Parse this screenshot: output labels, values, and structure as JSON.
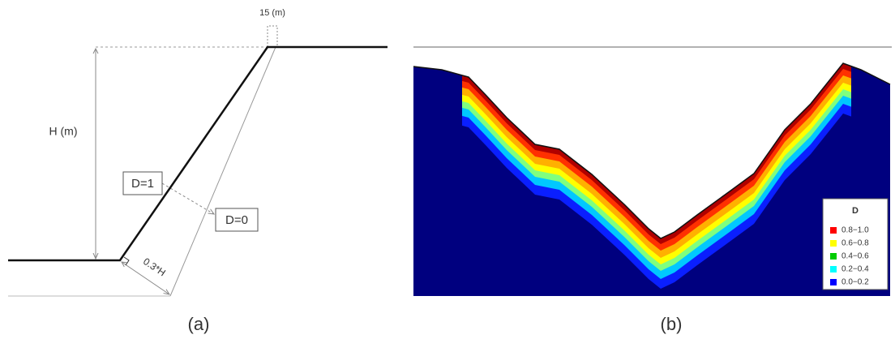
{
  "panel_a": {
    "top_width": "15 (m)",
    "height": "H (m)",
    "d1": "D=1",
    "d0": "D=0",
    "depth": "0.3*H",
    "caption": "(a)"
  },
  "panel_b": {
    "legend": {
      "title": "D",
      "items": [
        {
          "label": "0.8−1.0",
          "color": "#ff0000"
        },
        {
          "label": "0.6−0.8",
          "color": "#ffff00"
        },
        {
          "label": "0.4−0.6",
          "color": "#00cc00"
        },
        {
          "label": "0.2−0.4",
          "color": "#00ffff"
        },
        {
          "label": "0.0−0.2",
          "color": "#0000ff"
        }
      ]
    },
    "caption": "(b)"
  }
}
